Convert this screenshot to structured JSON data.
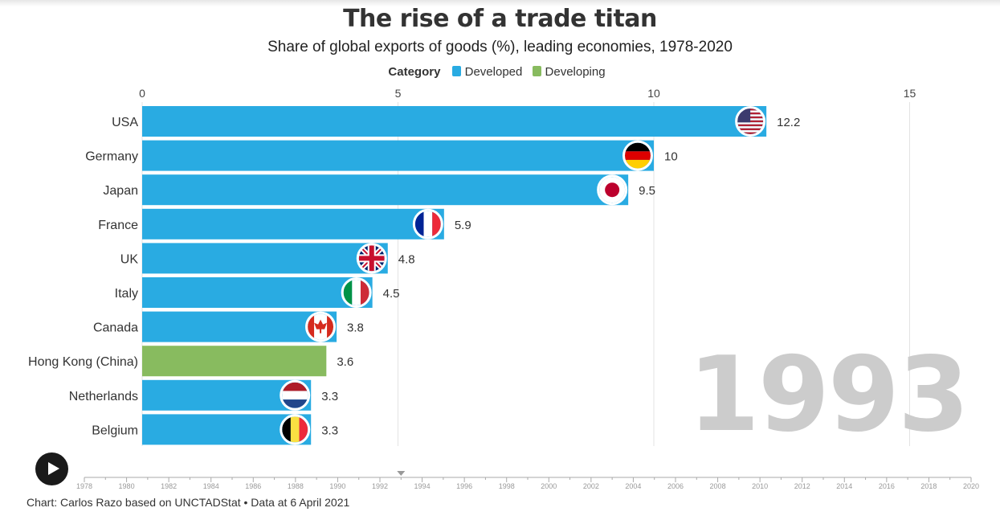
{
  "title": "The rise of a trade titan",
  "subtitle": "Share of global exports of goods (%), leading economies, 1978-2020",
  "legend": {
    "title": "Category",
    "items": [
      {
        "label": "Developed",
        "color": "#29abe2"
      },
      {
        "label": "Developing",
        "color": "#88bb5f"
      }
    ]
  },
  "footer": "Chart: Carlos Razo based on UNCTADStat • Data at 6 April 2021",
  "current_year": "1993",
  "chart_data": {
    "type": "bar",
    "orientation": "horizontal",
    "xlim": [
      0,
      15
    ],
    "x_ticks": [
      0,
      5,
      10,
      15
    ],
    "grid": true,
    "legend_position": "top-center",
    "categories": [
      "USA",
      "Germany",
      "Japan",
      "France",
      "UK",
      "Italy",
      "Canada",
      "Hong Kong (China)",
      "Netherlands",
      "Belgium"
    ],
    "values": [
      12.2,
      10,
      9.5,
      5.9,
      4.8,
      4.5,
      3.8,
      3.6,
      3.3,
      3.3
    ],
    "value_labels": [
      "12.2",
      "10",
      "9.5",
      "5.9",
      "4.8",
      "4.5",
      "3.8",
      "3.6",
      "3.3",
      "3.3"
    ],
    "groups": [
      "Developed",
      "Developed",
      "Developed",
      "Developed",
      "Developed",
      "Developed",
      "Developed",
      "Developing",
      "Developed",
      "Developed"
    ],
    "flags": [
      "us-flag-icon",
      "germany-flag-icon",
      "japan-flag-icon",
      "france-flag-icon",
      "uk-flag-icon",
      "italy-flag-icon",
      "canada-flag-icon",
      null,
      "netherlands-flag-icon",
      "belgium-flag-icon"
    ]
  },
  "timeline": {
    "years": [
      "1978",
      "1980",
      "1982",
      "1984",
      "1986",
      "1988",
      "1990",
      "1992",
      "1994",
      "1996",
      "1998",
      "2000",
      "2002",
      "2004",
      "2006",
      "2008",
      "2010",
      "2012",
      "2014",
      "2016",
      "2018",
      "2020"
    ],
    "start": 1978,
    "end": 2020,
    "current": 1993
  }
}
